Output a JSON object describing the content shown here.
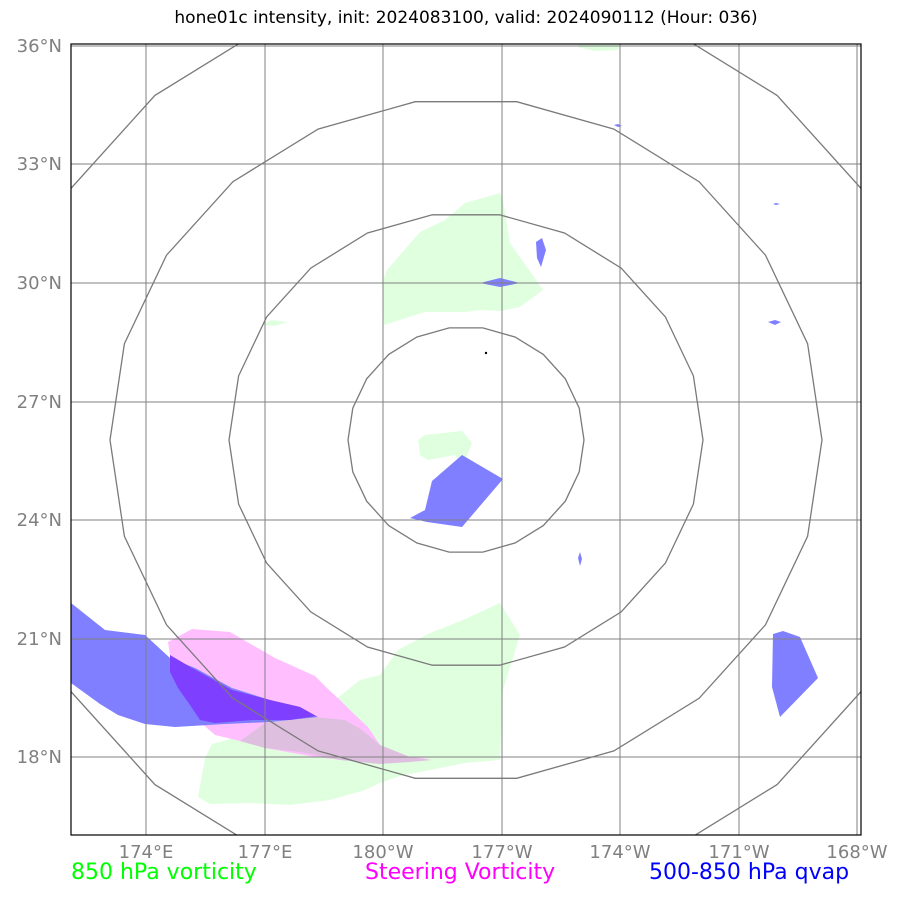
{
  "title": "hone01c intensity, init: 2024083100, valid: 2024090112 (Hour: 036)",
  "colors": {
    "vorticity": "#00ff00",
    "steering": "#ff00ff",
    "qvap": "#0000ff",
    "vorticity_fill": "#dfffdf",
    "steering_fill": "#ffbfff",
    "qvap_fill": "#7f7fff",
    "overlap_fill": "#7f3fff",
    "mixed_fill": "#dfbfdf",
    "grid": "#808080",
    "rings": "#7a7a7a"
  },
  "axes": {
    "lat_labels": [
      "36°N",
      "33°N",
      "30°N",
      "27°N",
      "24°N",
      "21°N",
      "18°N"
    ],
    "lon_labels": [
      "174°E",
      "177°E",
      "180°W",
      "177°W",
      "174°W",
      "171°W",
      "168°W"
    ]
  },
  "legend": {
    "vorticity": "850 hPa vorticity",
    "steering": "Steering Vorticity",
    "qvap": "500-850 hPa qvap"
  }
}
